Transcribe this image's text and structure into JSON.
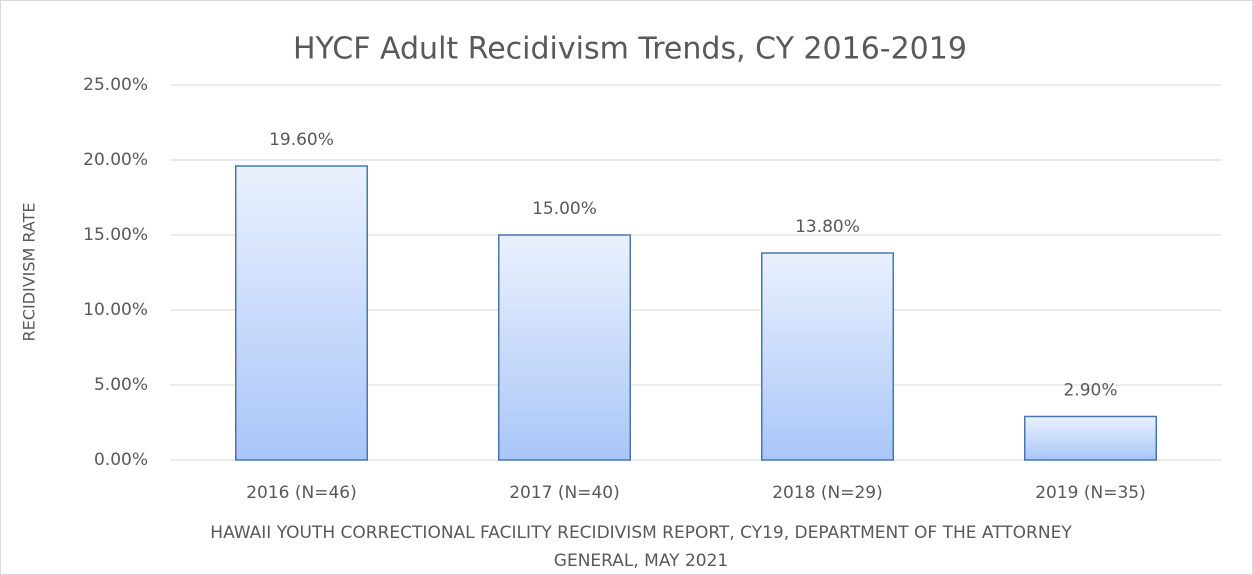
{
  "chart_data": {
    "type": "bar",
    "title": "HYCF Adult Recidivism Trends, CY 2016-2019",
    "y_label": "RECIDIVISM RATE",
    "x_label": "HAWAII YOUTH CORRECTIONAL FACILITY RECIDIVISM REPORT, CY19, DEPARTMENT OF THE ATTORNEY GENERAL, MAY 2021",
    "categories": [
      "2016 (N=46)",
      "2017 (N=40)",
      "2018 (N=29)",
      "2019 (N=35)"
    ],
    "values": [
      19.6,
      15,
      13.8,
      2.9
    ],
    "value_labels": [
      "19.60%",
      "15.00%",
      "13.80%",
      "2.90%"
    ],
    "color": "#a9c6f9",
    "edge_color": "#4a76b0",
    "ylim": [
      0,
      25
    ],
    "yticks": [
      {
        "value": 0,
        "label": "0.00%"
      },
      {
        "value": 5,
        "label": "5.00%"
      },
      {
        "value": 10,
        "label": "10.00%"
      },
      {
        "value": 15,
        "label": "15.00%"
      },
      {
        "value": 20,
        "label": "20.00%"
      },
      {
        "value": 25,
        "label": "25.00%"
      }
    ],
    "grid": true
  }
}
